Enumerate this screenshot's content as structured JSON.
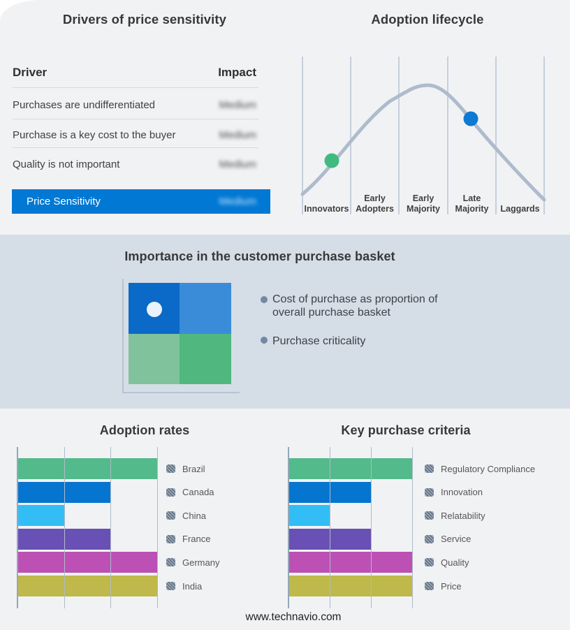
{
  "page": {
    "background": "#f1f2f4",
    "band_background": "#d5dde7",
    "footer_url": "www.technavio.com"
  },
  "price_sensitivity_panel": {
    "title": "Drivers of price sensitivity",
    "columns": {
      "driver": "Driver",
      "impact": "Impact"
    },
    "rows": [
      {
        "driver": "Purchases are undifferentiated",
        "impact": "Medium"
      },
      {
        "driver": "Purchase is a key cost to the buyer",
        "impact": "Medium"
      },
      {
        "driver": "Quality is not important",
        "impact": "Medium"
      }
    ],
    "summary_row": {
      "label": "Price Sensitivity",
      "impact": "Medium",
      "color": "#0078d4"
    }
  },
  "lifecycle_panel": {
    "title": "Adoption lifecycle",
    "stages": [
      {
        "lines": [
          "Innovators"
        ]
      },
      {
        "lines": [
          "Early",
          "Adopters"
        ]
      },
      {
        "lines": [
          "Early",
          "Majority"
        ]
      },
      {
        "lines": [
          "Late",
          "Majority"
        ]
      },
      {
        "lines": [
          "Laggards"
        ]
      }
    ],
    "curve_color": "#aebbcd",
    "gridline_color": "#b3c0d1",
    "markers": [
      {
        "stage": "Innovators",
        "color": "#41ba82"
      },
      {
        "stage": "Late Majority",
        "color": "#0e79d2"
      }
    ]
  },
  "basket_panel": {
    "title": "Importance in the customer purchase basket",
    "bullets": [
      "Cost of purchase as proportion of overall purchase basket",
      "Purchase criticality"
    ],
    "quadrant": {
      "colors": [
        "#0b69c7",
        "#3a8cd9",
        "#80c29b",
        "#50b77e"
      ],
      "dot_color": "#eaf3fb"
    }
  },
  "chart_data": [
    {
      "id": "adoption-lifecycle",
      "type": "line",
      "title": "Adoption lifecycle",
      "x_categories": [
        "Innovators",
        "Early Adopters",
        "Early Majority",
        "Late Majority",
        "Laggards"
      ],
      "shape": "bell curve peaking over Early Majority",
      "grid": true,
      "annotations": [
        {
          "point": "rising slope in Innovators segment",
          "marker_color": "#41ba82"
        },
        {
          "point": "falling slope in Late Majority segment",
          "marker_color": "#0e79d2"
        }
      ]
    },
    {
      "id": "adoption-rates",
      "type": "bar",
      "orientation": "horizontal",
      "title": "Adoption rates",
      "categories": [
        "Brazil",
        "Canada",
        "China",
        "France",
        "Germany",
        "India"
      ],
      "values": [
        100,
        66,
        33,
        66,
        100,
        100
      ],
      "xlim": [
        0,
        100
      ],
      "xlabel": "",
      "ylabel": "",
      "grid": true,
      "legend_position": "right",
      "bar_colors": [
        "#53ba8b",
        "#0575cf",
        "#32bef5",
        "#6950b4",
        "#bc50b4",
        "#beb94a"
      ]
    },
    {
      "id": "key-purchase-criteria",
      "type": "bar",
      "orientation": "horizontal",
      "title": "Key purchase criteria",
      "categories": [
        "Regulatory Compliance",
        "Innovation",
        "Relatability",
        "Service",
        "Quality",
        "Price"
      ],
      "values": [
        100,
        66,
        33,
        66,
        100,
        100
      ],
      "xlim": [
        0,
        100
      ],
      "xlabel": "",
      "ylabel": "",
      "grid": true,
      "legend_position": "right",
      "bar_colors": [
        "#53ba8b",
        "#0575cf",
        "#32bef5",
        "#6950b4",
        "#bc50b4",
        "#beb94a"
      ]
    }
  ]
}
